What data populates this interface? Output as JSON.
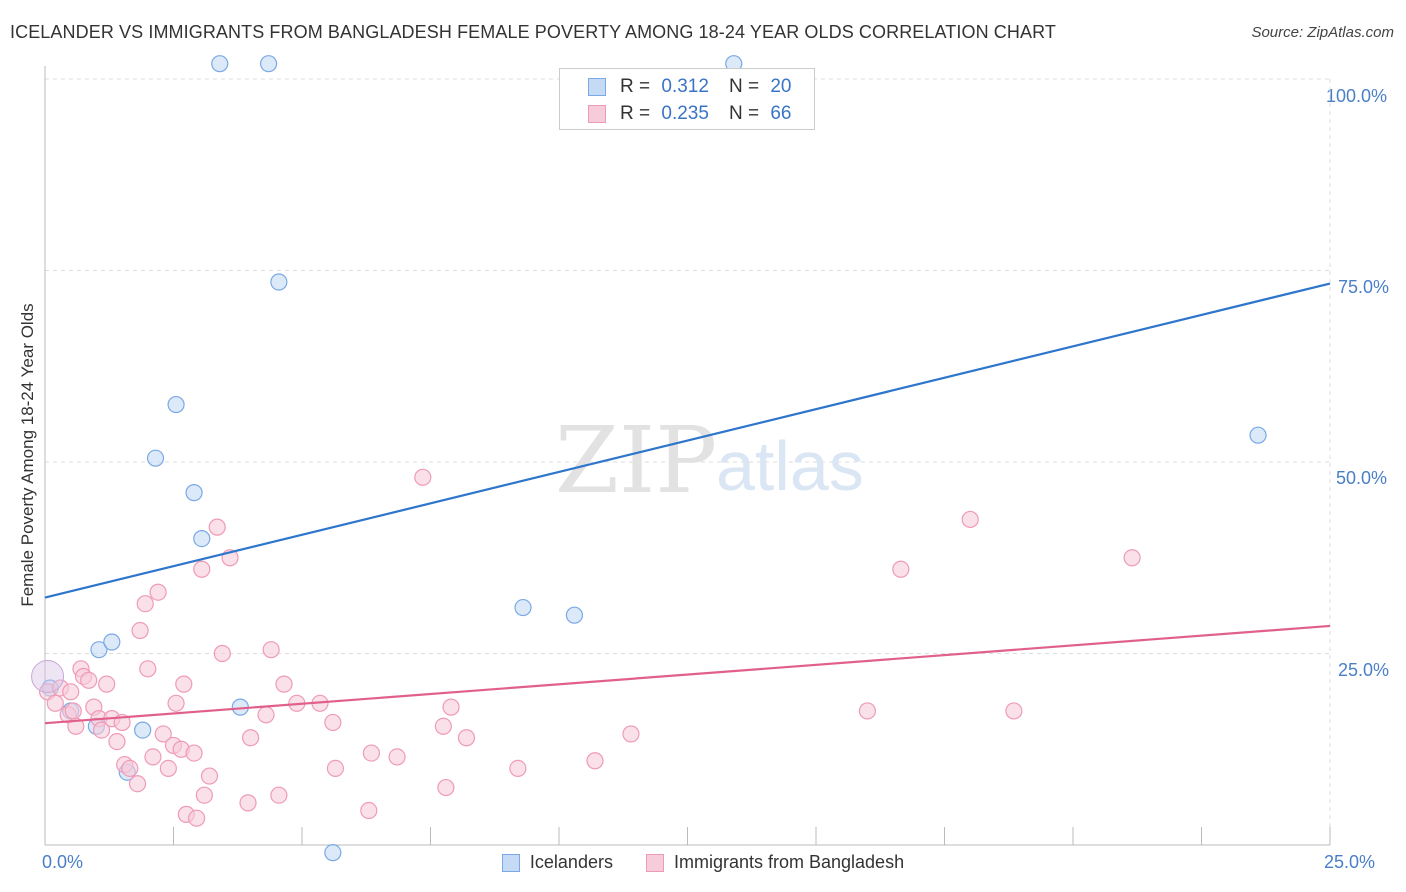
{
  "header": {
    "title": "ICELANDER VS IMMIGRANTS FROM BANGLADESH FEMALE POVERTY AMONG 18-24 YEAR OLDS CORRELATION CHART",
    "source": "Source: ZipAtlas.com"
  },
  "watermark": {
    "zip": "ZIP",
    "atlas": "atlas"
  },
  "stats": {
    "rows": [
      {
        "r_label": "R =",
        "r_value": "0.312",
        "n_label": "N =",
        "n_value": "20"
      },
      {
        "r_label": "R =",
        "r_value": "0.235",
        "n_label": "N =",
        "n_value": "66"
      }
    ]
  },
  "chart_data": {
    "type": "scatter",
    "title": "ICELANDER VS IMMIGRANTS FROM BANGLADESH FEMALE POVERTY AMONG 18-24 YEAR OLDS CORRELATION CHART",
    "xlabel": "",
    "ylabel": "Female Poverty Among 18-24 Year Olds",
    "xlim": [
      0,
      25
    ],
    "ylim": [
      0,
      100
    ],
    "x_tick_labels": [
      "0.0%",
      "25.0%"
    ],
    "y_tick_labels": [
      "100.0%",
      "75.0%",
      "50.0%",
      "25.0%"
    ],
    "grid": true,
    "legend": "bottom",
    "series": [
      {
        "name": "Icelanders",
        "color": "#7aa9e6",
        "fill": "#c5daf5",
        "line_color": "#2e75cc",
        "trend": {
          "x": [
            0,
            25
          ],
          "y": [
            32.3,
            73.3
          ]
        },
        "points": [
          {
            "x": 0.1,
            "y": 20.5
          },
          {
            "x": 0.5,
            "y": 17.5
          },
          {
            "x": 1.0,
            "y": 15.5
          },
          {
            "x": 1.05,
            "y": 25.5
          },
          {
            "x": 1.3,
            "y": 26.5
          },
          {
            "x": 1.6,
            "y": 9.5
          },
          {
            "x": 1.9,
            "y": 15.0
          },
          {
            "x": 2.15,
            "y": 50.5
          },
          {
            "x": 2.55,
            "y": 57.5
          },
          {
            "x": 2.9,
            "y": 46.0
          },
          {
            "x": 3.05,
            "y": 40.0
          },
          {
            "x": 3.4,
            "y": 102.0
          },
          {
            "x": 3.8,
            "y": 18.0
          },
          {
            "x": 4.35,
            "y": 102.0
          },
          {
            "x": 4.55,
            "y": 73.5
          },
          {
            "x": 5.6,
            "y": -1.0
          },
          {
            "x": 9.3,
            "y": 31.0
          },
          {
            "x": 10.3,
            "y": 30.0
          },
          {
            "x": 13.4,
            "y": 102.0
          },
          {
            "x": 23.6,
            "y": 53.5
          }
        ]
      },
      {
        "name": "Immigrants from Bangladesh",
        "color": "#ef9bb6",
        "fill": "#f7ccda",
        "line_color": "#e0608b",
        "trend": {
          "x": [
            0,
            25
          ],
          "y": [
            15.9,
            28.6
          ]
        },
        "points": [
          {
            "x": 0.05,
            "y": 20.0
          },
          {
            "x": 0.2,
            "y": 18.5
          },
          {
            "x": 0.3,
            "y": 20.5
          },
          {
            "x": 0.45,
            "y": 17.0
          },
          {
            "x": 0.5,
            "y": 20.0
          },
          {
            "x": 0.55,
            "y": 17.5
          },
          {
            "x": 0.6,
            "y": 15.5
          },
          {
            "x": 0.7,
            "y": 23.0
          },
          {
            "x": 0.75,
            "y": 22.0
          },
          {
            "x": 0.85,
            "y": 21.5
          },
          {
            "x": 0.95,
            "y": 18.0
          },
          {
            "x": 1.05,
            "y": 16.5
          },
          {
            "x": 1.1,
            "y": 15.0
          },
          {
            "x": 1.2,
            "y": 21.0
          },
          {
            "x": 1.3,
            "y": 16.5
          },
          {
            "x": 1.4,
            "y": 13.5
          },
          {
            "x": 1.5,
            "y": 16.0
          },
          {
            "x": 1.55,
            "y": 10.5
          },
          {
            "x": 1.65,
            "y": 10.0
          },
          {
            "x": 1.8,
            "y": 8.0
          },
          {
            "x": 1.85,
            "y": 28.0
          },
          {
            "x": 1.95,
            "y": 31.5
          },
          {
            "x": 2.0,
            "y": 23.0
          },
          {
            "x": 2.1,
            "y": 11.5
          },
          {
            "x": 2.2,
            "y": 33.0
          },
          {
            "x": 2.3,
            "y": 14.5
          },
          {
            "x": 2.4,
            "y": 10.0
          },
          {
            "x": 2.5,
            "y": 13.0
          },
          {
            "x": 2.55,
            "y": 18.5
          },
          {
            "x": 2.65,
            "y": 12.5
          },
          {
            "x": 2.7,
            "y": 21.0
          },
          {
            "x": 2.75,
            "y": 4.0
          },
          {
            "x": 2.9,
            "y": 12.0
          },
          {
            "x": 2.95,
            "y": 3.5
          },
          {
            "x": 3.1,
            "y": 6.5
          },
          {
            "x": 3.05,
            "y": 36.0
          },
          {
            "x": 3.2,
            "y": 9.0
          },
          {
            "x": 3.35,
            "y": 41.5
          },
          {
            "x": 3.45,
            "y": 25.0
          },
          {
            "x": 3.6,
            "y": 37.5
          },
          {
            "x": 3.95,
            "y": 5.5
          },
          {
            "x": 4.0,
            "y": 14.0
          },
          {
            "x": 4.3,
            "y": 17.0
          },
          {
            "x": 4.4,
            "y": 25.5
          },
          {
            "x": 4.55,
            "y": 6.5
          },
          {
            "x": 4.65,
            "y": 21.0
          },
          {
            "x": 4.9,
            "y": 18.5
          },
          {
            "x": 5.35,
            "y": 18.5
          },
          {
            "x": 5.6,
            "y": 16.0
          },
          {
            "x": 5.65,
            "y": 10.0
          },
          {
            "x": 6.3,
            "y": 4.5
          },
          {
            "x": 6.35,
            "y": 12.0
          },
          {
            "x": 6.85,
            "y": 11.5
          },
          {
            "x": 7.35,
            "y": 48.0
          },
          {
            "x": 7.75,
            "y": 15.5
          },
          {
            "x": 7.8,
            "y": 7.5
          },
          {
            "x": 7.9,
            "y": 18.0
          },
          {
            "x": 8.2,
            "y": 14.0
          },
          {
            "x": 9.2,
            "y": 10.0
          },
          {
            "x": 10.7,
            "y": 11.0
          },
          {
            "x": 11.4,
            "y": 14.5
          },
          {
            "x": 16.0,
            "y": 17.5
          },
          {
            "x": 16.65,
            "y": 36.0
          },
          {
            "x": 18.0,
            "y": 42.5
          },
          {
            "x": 18.85,
            "y": 17.5
          },
          {
            "x": 21.15,
            "y": 37.5
          }
        ]
      }
    ]
  }
}
